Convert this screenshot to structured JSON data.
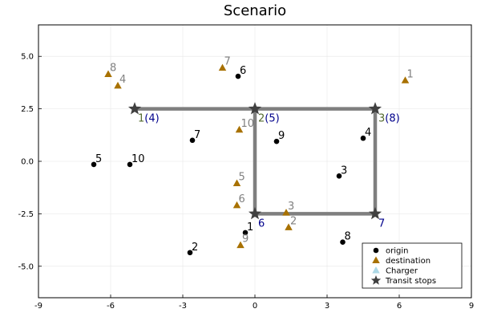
{
  "chart_data": {
    "type": "scatter",
    "title": "Scenario",
    "xlim": [
      -9,
      9
    ],
    "ylim": [
      -6.5,
      6.5
    ],
    "xticks": [
      -9,
      -6,
      -3,
      0,
      3,
      6,
      9
    ],
    "yticks": [
      -5.0,
      -2.5,
      0.0,
      2.5,
      5.0
    ],
    "ytick_labels": [
      "-5.0",
      "-2.5",
      "0.0",
      "2.5",
      "5.0"
    ],
    "grid": true,
    "legend_position": "bottom-right",
    "colors": {
      "origin": "#000000",
      "destination": "#a87100",
      "charger": "#add8e6",
      "transit": "#404040",
      "route": "#7f7f7f",
      "origin_label": "#000000",
      "destination_label": "#808080",
      "stop_label_a": "#556b2f",
      "stop_label_b": "#00008b"
    },
    "series": [
      {
        "name": "origin",
        "marker": "circle",
        "points": [
          {
            "label": "1",
            "x": -0.4,
            "y": -3.4
          },
          {
            "label": "2",
            "x": -2.7,
            "y": -4.35
          },
          {
            "label": "3",
            "x": 3.5,
            "y": -0.7
          },
          {
            "label": "4",
            "x": 4.5,
            "y": 1.1
          },
          {
            "label": "5",
            "x": -6.7,
            "y": -0.15
          },
          {
            "label": "6",
            "x": -0.7,
            "y": 4.05
          },
          {
            "label": "7",
            "x": -2.6,
            "y": 1.0
          },
          {
            "label": "8",
            "x": 3.65,
            "y": -3.85
          },
          {
            "label": "9",
            "x": 0.9,
            "y": 0.95
          },
          {
            "label": "10",
            "x": -5.2,
            "y": -0.15
          }
        ]
      },
      {
        "name": "destination",
        "marker": "triangle",
        "points": [
          {
            "label": "1",
            "x": 6.25,
            "y": 3.85
          },
          {
            "label": "2",
            "x": 1.4,
            "y": -3.15
          },
          {
            "label": "3",
            "x": 1.3,
            "y": -2.45
          },
          {
            "label": "4",
            "x": -5.7,
            "y": 3.6
          },
          {
            "label": "5",
            "x": -0.75,
            "y": -1.05
          },
          {
            "label": "6",
            "x": -0.75,
            "y": -2.1
          },
          {
            "label": "7",
            "x": -1.35,
            "y": 4.45
          },
          {
            "label": "8",
            "x": -6.1,
            "y": 4.15
          },
          {
            "label": "9",
            "x": -0.6,
            "y": -4.0
          },
          {
            "label": "10",
            "x": -0.65,
            "y": 1.5
          }
        ]
      },
      {
        "name": "Charger",
        "marker": "triangle",
        "points": []
      },
      {
        "name": "Transit stops",
        "marker": "star",
        "points": [
          {
            "label_a": "1",
            "label_b": "(4)",
            "x": -5,
            "y": 2.5
          },
          {
            "label_a": "2",
            "label_b": "(5)",
            "x": 0,
            "y": 2.5
          },
          {
            "label_a": "3",
            "label_b": "(8)",
            "x": 5,
            "y": 2.5
          },
          {
            "label_a": "",
            "label_b": "6",
            "x": 0,
            "y": -2.5
          },
          {
            "label_a": "",
            "label_b": "7",
            "x": 5,
            "y": -2.5
          }
        ]
      }
    ],
    "routes": [
      [
        [
          -5,
          2.5
        ],
        [
          5,
          2.5
        ]
      ],
      [
        [
          0,
          2.5
        ],
        [
          0,
          -2.5
        ]
      ],
      [
        [
          0,
          -2.5
        ],
        [
          5,
          -2.5
        ]
      ],
      [
        [
          5,
          -2.5
        ],
        [
          5,
          2.5
        ]
      ]
    ]
  }
}
